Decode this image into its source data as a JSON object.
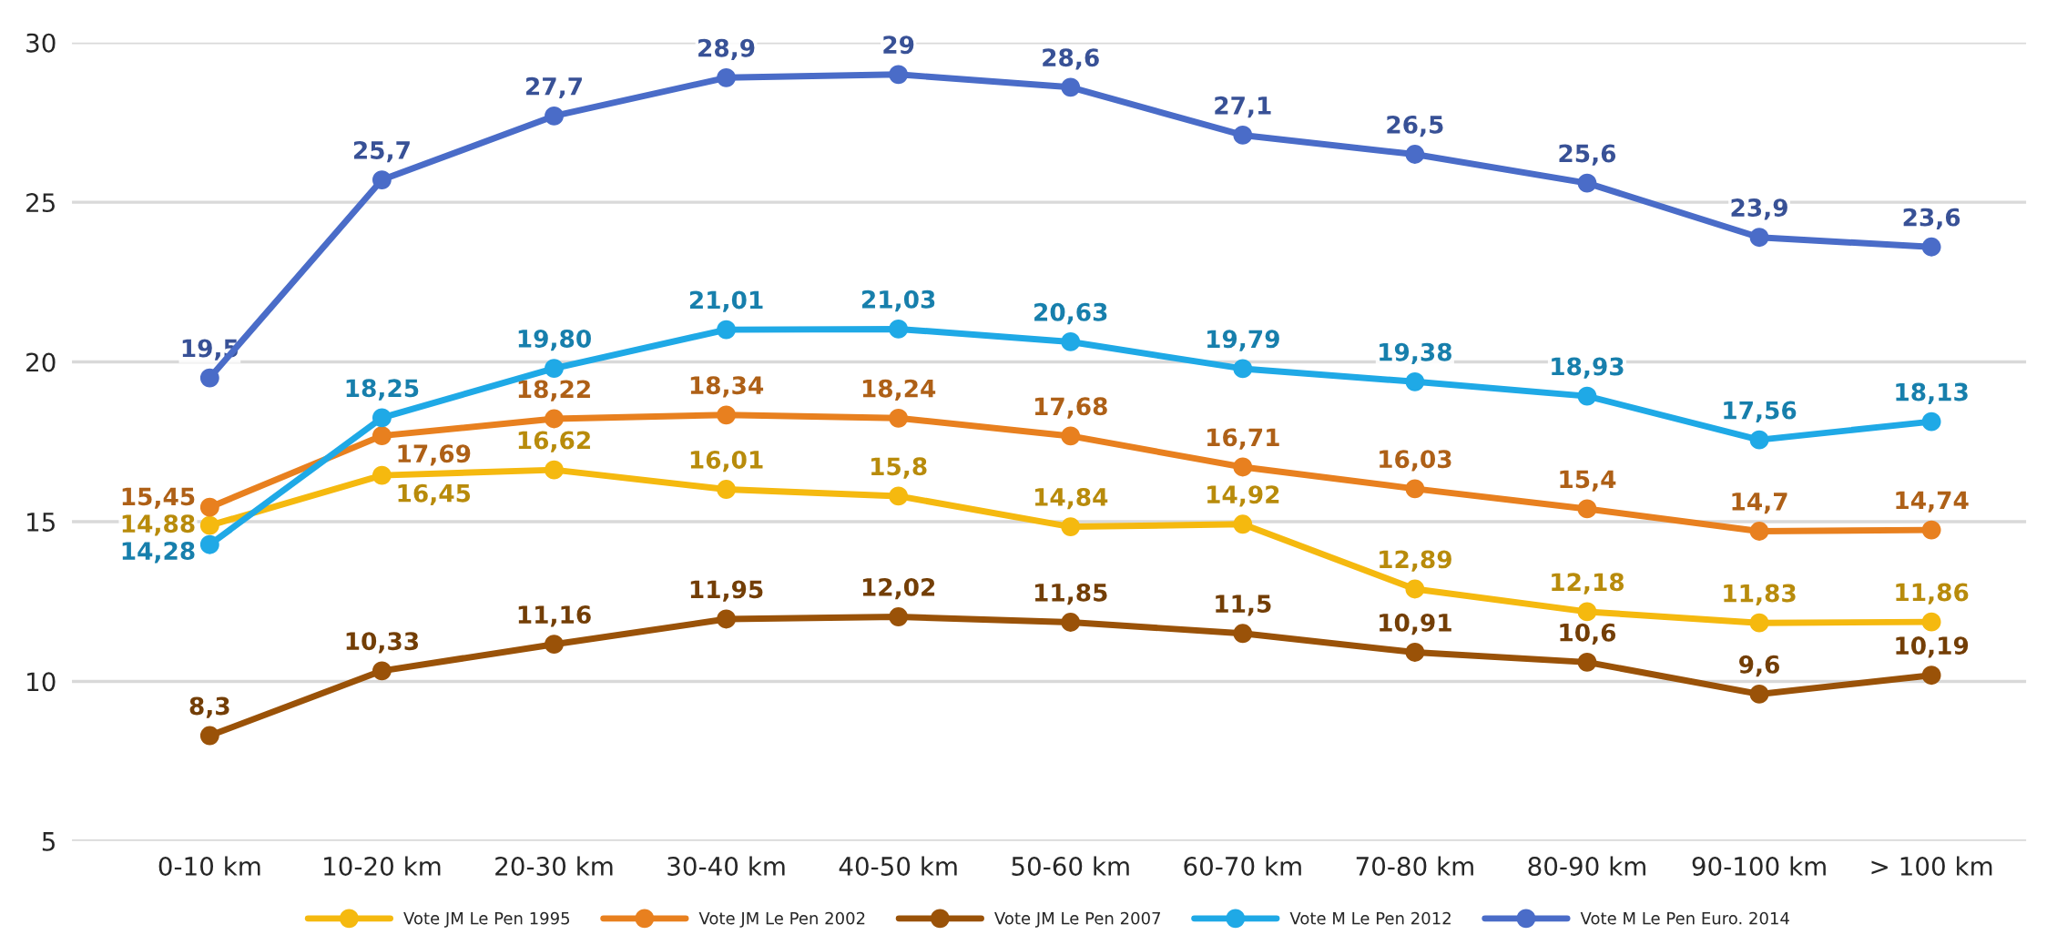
{
  "chart_data": {
    "type": "line",
    "categories": [
      "0-10 km",
      "10-20 km",
      "20-30 km",
      "30-40 km",
      "40-50 km",
      "50-60 km",
      "60-70 km",
      "70-80 km",
      "80-90 km",
      "90-100 km",
      "> 100 km"
    ],
    "series": [
      {
        "name": "Vote JM Le Pen 1995",
        "color": "#f5b90f",
        "values": [
          14.88,
          16.45,
          16.62,
          16.01,
          15.8,
          14.84,
          14.92,
          12.89,
          12.18,
          11.83,
          11.86
        ],
        "value_labels": [
          "14,88",
          "16,45",
          "16,62",
          "16,01",
          "15,8",
          "14,84",
          "14,92",
          "12,89",
          "12,18",
          "11,83",
          "11,86"
        ]
      },
      {
        "name": "Vote JM Le Pen 2002",
        "color": "#e8801f",
        "values": [
          15.45,
          17.69,
          18.22,
          18.34,
          18.24,
          17.68,
          16.71,
          16.03,
          15.4,
          14.7,
          14.74
        ],
        "value_labels": [
          "15,45",
          "17,69",
          "18,22",
          "18,34",
          "18,24",
          "17,68",
          "16,71",
          "16,03",
          "15,4",
          "14,7",
          "14,74"
        ]
      },
      {
        "name": "Vote JM Le Pen 2007",
        "color": "#9a5208",
        "values": [
          8.3,
          10.33,
          11.16,
          11.95,
          12.02,
          11.85,
          11.5,
          10.91,
          10.6,
          9.6,
          10.19
        ],
        "value_labels": [
          "8,3",
          "10,33",
          "11,16",
          "11,95",
          "12,02",
          "11,85",
          "11,5",
          "10,91",
          "10,6",
          "9,6",
          "10,19"
        ]
      },
      {
        "name": "Vote M Le Pen 2012",
        "color": "#1fa9e6",
        "values": [
          14.28,
          18.25,
          19.8,
          21.01,
          21.03,
          20.63,
          19.79,
          19.38,
          18.93,
          17.56,
          18.13
        ],
        "value_labels": [
          "14,28",
          "18,25",
          "19,80",
          "21,01",
          "21,03",
          "20,63",
          "19,79",
          "19,38",
          "18,93",
          "17,56",
          "18,13"
        ]
      },
      {
        "name": "Vote M Le Pen Euro. 2014",
        "color": "#4a6cc8",
        "values": [
          19.5,
          25.7,
          27.7,
          28.9,
          29,
          28.6,
          27.1,
          26.5,
          25.6,
          23.9,
          23.6
        ],
        "value_labels": [
          "19,5",
          "25,7",
          "27,7",
          "28,9",
          "29",
          "28,6",
          "27,1",
          "26,5",
          "25,6",
          "23,9",
          "23,6"
        ]
      }
    ],
    "ylim": [
      5,
      30
    ],
    "yticks": [
      5,
      10,
      15,
      20,
      25,
      30
    ],
    "grid": "y",
    "legend": "bottom",
    "marker": "circle",
    "line_style": "solid"
  }
}
